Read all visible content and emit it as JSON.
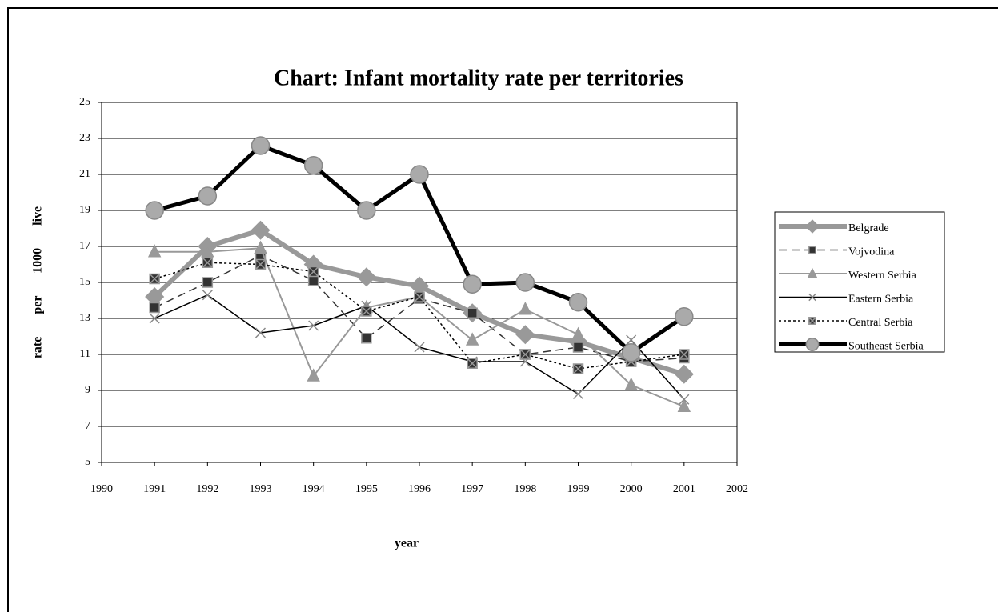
{
  "chart_data": {
    "type": "line",
    "title": "Chart: Infant mortality rate per territories",
    "x_label": "year",
    "y_label": "rate per 1000 live",
    "x": [
      1991,
      1992,
      1993,
      1994,
      1995,
      1996,
      1997,
      1998,
      1999,
      2000,
      2001
    ],
    "xlim": [
      1990,
      2002
    ],
    "xticks": [
      1990,
      1991,
      1992,
      1993,
      1994,
      1995,
      1996,
      1997,
      1998,
      1999,
      2000,
      2001,
      2002
    ],
    "ylim": [
      5,
      25
    ],
    "yticks": [
      5,
      7,
      9,
      11,
      13,
      15,
      17,
      19,
      21,
      23,
      25
    ],
    "grid": true,
    "legend": "right",
    "series": [
      {
        "name": "Belgrade",
        "color": "#999999",
        "values": [
          14.2,
          17.0,
          17.9,
          16.0,
          15.3,
          14.8,
          13.3,
          12.1,
          11.7,
          10.8,
          9.9
        ]
      },
      {
        "name": "Vojvodina",
        "color": "#333333",
        "values": [
          13.6,
          15.0,
          16.5,
          15.1,
          11.9,
          14.1,
          13.3,
          11.0,
          11.4,
          10.6,
          10.8
        ]
      },
      {
        "name": "Western Serbia",
        "color": "#999999",
        "values": [
          16.7,
          16.7,
          16.9,
          9.8,
          13.6,
          14.2,
          11.8,
          13.5,
          12.1,
          9.3,
          8.1
        ]
      },
      {
        "name": "Eastern Serbia",
        "color": "#000000",
        "values": [
          13.0,
          14.3,
          12.2,
          12.6,
          13.7,
          11.4,
          10.6,
          10.6,
          8.8,
          11.8,
          8.5
        ]
      },
      {
        "name": "Central Serbia",
        "color": "#000000",
        "values": [
          15.2,
          16.1,
          16.0,
          15.6,
          13.4,
          14.2,
          10.5,
          11.0,
          10.2,
          10.6,
          11.0
        ]
      },
      {
        "name": "Southeast Serbia",
        "color": "#000000",
        "values": [
          19.0,
          19.8,
          22.6,
          21.5,
          19.0,
          21.0,
          14.9,
          15.0,
          13.9,
          11.1,
          13.1
        ]
      }
    ]
  }
}
